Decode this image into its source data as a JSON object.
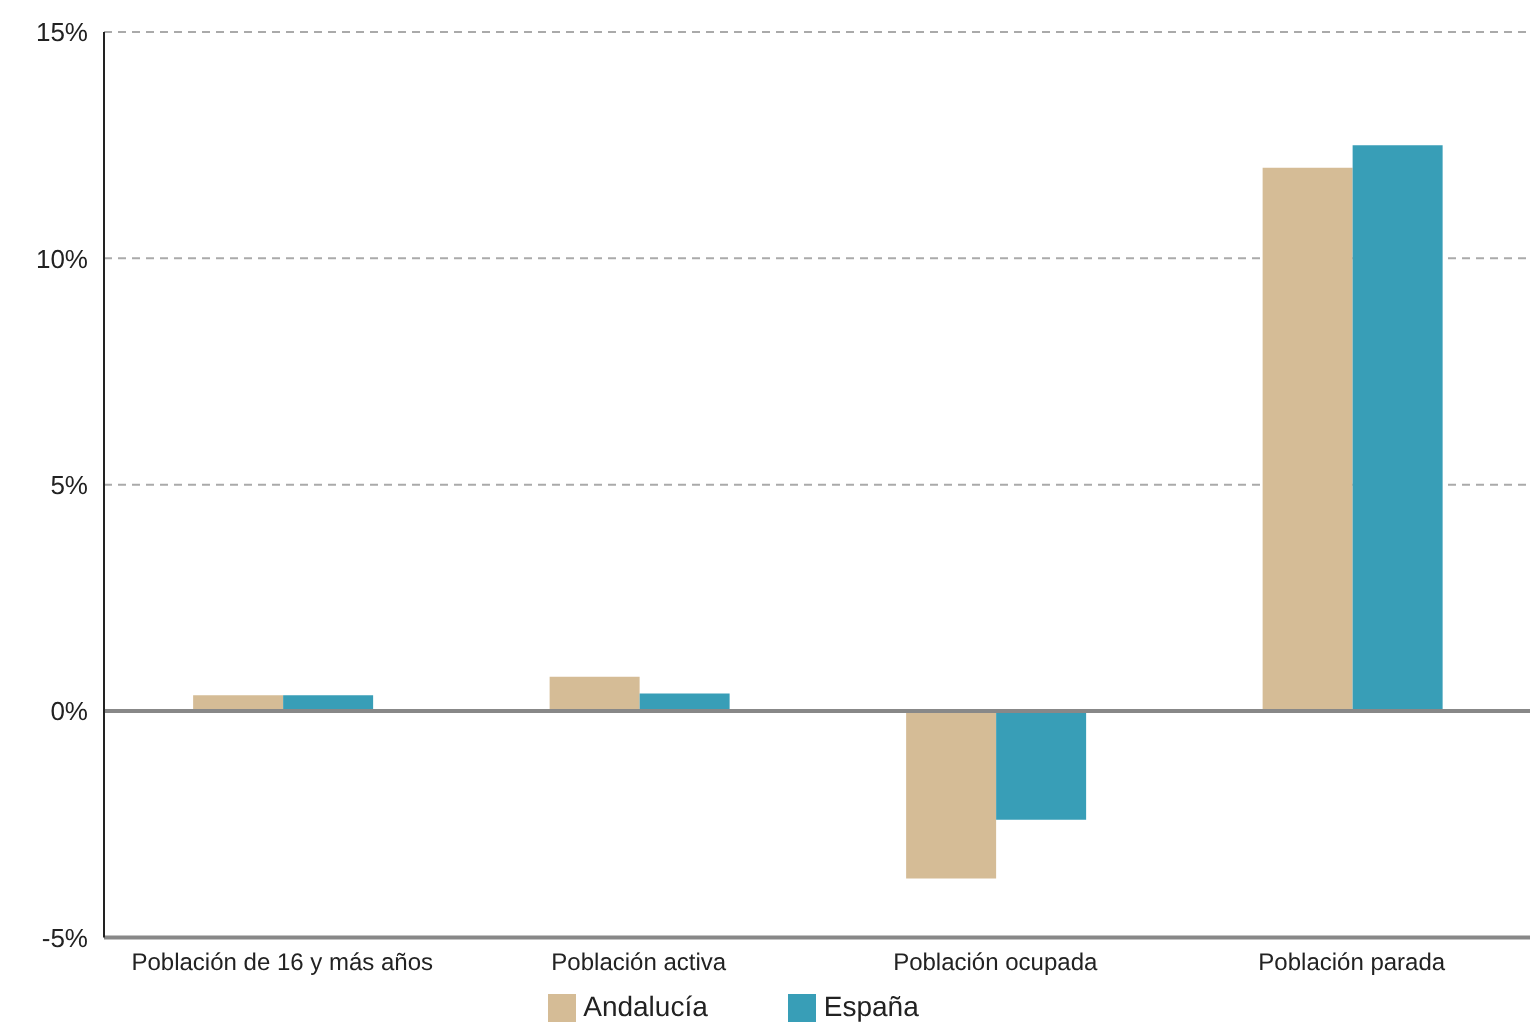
{
  "chart_data": {
    "type": "bar",
    "categories": [
      "Población de 16 y más años",
      "Población activa",
      "Población ocupada",
      "Población parada"
    ],
    "series": [
      {
        "name": "Andalucía",
        "color": "#d5bc96",
        "values": [
          0.35,
          0.76,
          -3.7,
          12.0
        ]
      },
      {
        "name": "España",
        "color": "#389eb7",
        "values": [
          0.35,
          0.39,
          -2.4,
          12.5
        ]
      }
    ],
    "ylim": [
      -5,
      15
    ],
    "yticks": [
      {
        "value": -5,
        "label": "-5%"
      },
      {
        "value": 0,
        "label": "0%"
      },
      {
        "value": 5,
        "label": "5%"
      },
      {
        "value": 10,
        "label": "10%"
      },
      {
        "value": 15,
        "label": "15%"
      }
    ],
    "grid": "y",
    "legend": "bottom",
    "ref_lines": [
      {
        "axis": "y",
        "value": 0,
        "color": "#888888",
        "line_style": "solid"
      }
    ]
  }
}
